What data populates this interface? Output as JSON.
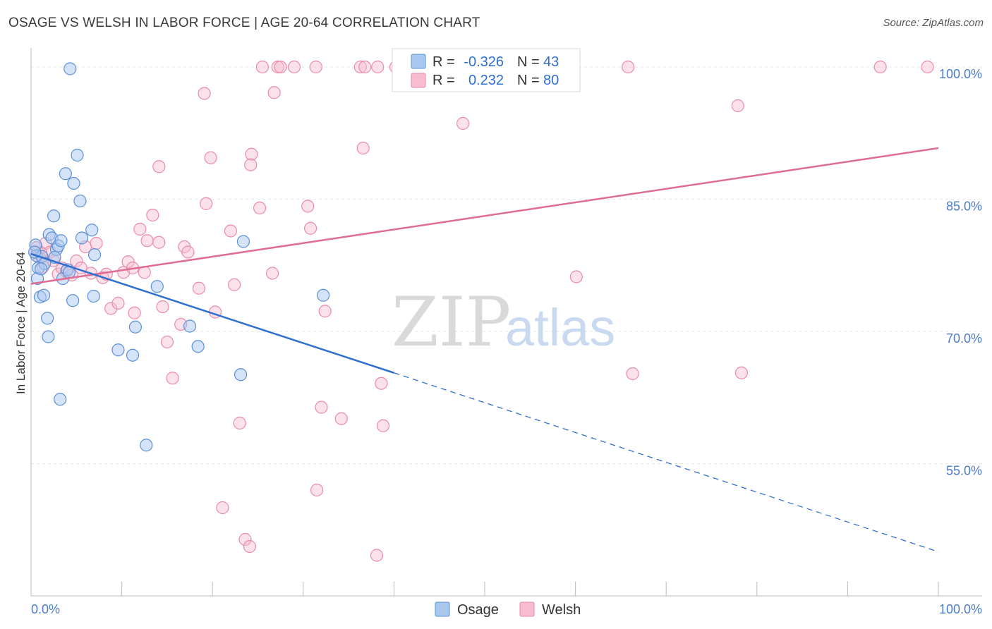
{
  "title": "OSAGE VS WELSH IN LABOR FORCE | AGE 20-64 CORRELATION CHART",
  "source": "Source: ZipAtlas.com",
  "watermark": {
    "zip": "ZIP",
    "atlas": "atlas"
  },
  "colors": {
    "osage_fill": "#a9c8f0",
    "osage_stroke": "#5b8fd6",
    "osage_line": "#2e6fd0",
    "welsh_fill": "#f7bcd0",
    "welsh_stroke": "#e88aab",
    "welsh_line": "#e06b95",
    "axis_text": "#4a7cc7",
    "grid": "#e6e6e6"
  },
  "legend": {
    "rows": [
      {
        "r_label": "R =",
        "r_value": "-0.326",
        "n_label": "N =",
        "n_value": "43"
      },
      {
        "r_label": "R =",
        "r_value": "0.232",
        "n_label": "N =",
        "n_value": "80"
      }
    ]
  },
  "chart_data": {
    "type": "scatter",
    "title": "OSAGE VS WELSH IN LABOR FORCE | AGE 20-64 CORRELATION CHART",
    "xlabel": "",
    "ylabel": "In Labor Force | Age 20-64",
    "xlim": [
      0,
      100
    ],
    "ylim": [
      40,
      102
    ],
    "x_tick_labels": [
      "0.0%",
      "100.0%"
    ],
    "y_ticks": [
      55,
      70,
      85,
      100
    ],
    "y_tick_labels": [
      "55.0%",
      "70.0%",
      "85.0%",
      "100.0%"
    ],
    "grid": true,
    "legend_position": "top-center",
    "series": [
      {
        "name": "Osage",
        "r": -0.326,
        "n": 43,
        "trend": {
          "x": [
            0,
            40,
            100
          ],
          "y": [
            78.8,
            65.3,
            45.0
          ],
          "solid_until": 40
        },
        "points": [
          [
            4.3,
            99.8
          ],
          [
            0.5,
            79.8
          ],
          [
            0.6,
            78.6
          ],
          [
            0.8,
            77.2
          ],
          [
            0.7,
            76.0
          ],
          [
            1.0,
            73.9
          ],
          [
            1.2,
            78.5
          ],
          [
            1.5,
            77.7
          ],
          [
            1.4,
            74.1
          ],
          [
            2.0,
            81.0
          ],
          [
            2.3,
            80.6
          ],
          [
            2.5,
            83.1
          ],
          [
            2.8,
            79.3
          ],
          [
            3.0,
            79.7
          ],
          [
            3.3,
            80.3
          ],
          [
            1.8,
            71.5
          ],
          [
            1.9,
            69.4
          ],
          [
            3.5,
            76.0
          ],
          [
            4.0,
            77.0
          ],
          [
            4.6,
            73.5
          ],
          [
            3.8,
            87.9
          ],
          [
            4.7,
            86.8
          ],
          [
            5.1,
            90.0
          ],
          [
            5.4,
            84.8
          ],
          [
            5.6,
            80.6
          ],
          [
            6.7,
            81.5
          ],
          [
            7.0,
            78.7
          ],
          [
            6.9,
            74.0
          ],
          [
            3.2,
            62.3
          ],
          [
            9.6,
            67.9
          ],
          [
            11.2,
            67.3
          ],
          [
            11.5,
            70.5
          ],
          [
            13.9,
            75.1
          ],
          [
            12.7,
            57.1
          ],
          [
            17.5,
            70.6
          ],
          [
            18.4,
            68.3
          ],
          [
            23.1,
            65.1
          ],
          [
            23.4,
            80.2
          ],
          [
            32.2,
            74.1
          ],
          [
            4.2,
            76.7
          ],
          [
            2.6,
            78.4
          ],
          [
            1.1,
            77.1
          ],
          [
            0.4,
            79.0
          ]
        ]
      },
      {
        "name": "Welsh",
        "r": 0.232,
        "n": 80,
        "trend": {
          "x": [
            0,
            100
          ],
          "y": [
            75.4,
            90.8
          ]
        },
        "points": [
          [
            0.6,
            79.5
          ],
          [
            0.9,
            78.4
          ],
          [
            1.3,
            77.3
          ],
          [
            1.6,
            80.0
          ],
          [
            2.1,
            79.0
          ],
          [
            2.5,
            78.0
          ],
          [
            3.0,
            76.5
          ],
          [
            3.4,
            77.2
          ],
          [
            3.9,
            76.8
          ],
          [
            4.5,
            76.4
          ],
          [
            5.0,
            78.0
          ],
          [
            5.5,
            77.2
          ],
          [
            6.0,
            79.6
          ],
          [
            6.6,
            76.6
          ],
          [
            7.2,
            80.0
          ],
          [
            7.9,
            76.1
          ],
          [
            8.3,
            76.5
          ],
          [
            8.8,
            72.6
          ],
          [
            9.6,
            73.2
          ],
          [
            10.2,
            76.7
          ],
          [
            10.7,
            77.9
          ],
          [
            11.2,
            77.2
          ],
          [
            11.4,
            72.1
          ],
          [
            12.0,
            81.6
          ],
          [
            12.5,
            76.7
          ],
          [
            12.8,
            80.3
          ],
          [
            13.4,
            83.2
          ],
          [
            14.1,
            80.1
          ],
          [
            14.5,
            72.8
          ],
          [
            14.1,
            88.7
          ],
          [
            15.0,
            68.8
          ],
          [
            15.6,
            64.7
          ],
          [
            16.5,
            70.8
          ],
          [
            16.9,
            79.6
          ],
          [
            17.3,
            79.0
          ],
          [
            18.5,
            74.9
          ],
          [
            19.1,
            97.0
          ],
          [
            19.3,
            84.5
          ],
          [
            19.8,
            89.7
          ],
          [
            20.3,
            72.2
          ],
          [
            21.1,
            50.0
          ],
          [
            22.0,
            81.4
          ],
          [
            22.4,
            75.3
          ],
          [
            23.0,
            59.6
          ],
          [
            24.3,
            90.1
          ],
          [
            24.2,
            88.9
          ],
          [
            25.2,
            84.0
          ],
          [
            23.6,
            46.4
          ],
          [
            24.1,
            45.6
          ],
          [
            25.5,
            100.0
          ],
          [
            26.6,
            76.6
          ],
          [
            26.8,
            97.1
          ],
          [
            27.2,
            100.0
          ],
          [
            27.5,
            100.0
          ],
          [
            29.0,
            100.0
          ],
          [
            30.5,
            84.2
          ],
          [
            30.8,
            81.7
          ],
          [
            31.4,
            100.0
          ],
          [
            31.5,
            52.0
          ],
          [
            32.0,
            61.4
          ],
          [
            32.4,
            72.3
          ],
          [
            34.2,
            60.1
          ],
          [
            36.3,
            100.0
          ],
          [
            36.6,
            90.8
          ],
          [
            36.8,
            100.0
          ],
          [
            38.2,
            100.0
          ],
          [
            38.6,
            64.1
          ],
          [
            38.8,
            59.3
          ],
          [
            38.1,
            44.6
          ],
          [
            40.2,
            100.0
          ],
          [
            47.6,
            93.6
          ],
          [
            52.4,
            100.0
          ],
          [
            60.1,
            76.2
          ],
          [
            65.8,
            100.0
          ],
          [
            66.3,
            65.2
          ],
          [
            77.9,
            95.6
          ],
          [
            78.3,
            65.3
          ],
          [
            93.6,
            100.0
          ],
          [
            98.8,
            100.0
          ],
          [
            1.1,
            78.9
          ]
        ]
      }
    ]
  }
}
